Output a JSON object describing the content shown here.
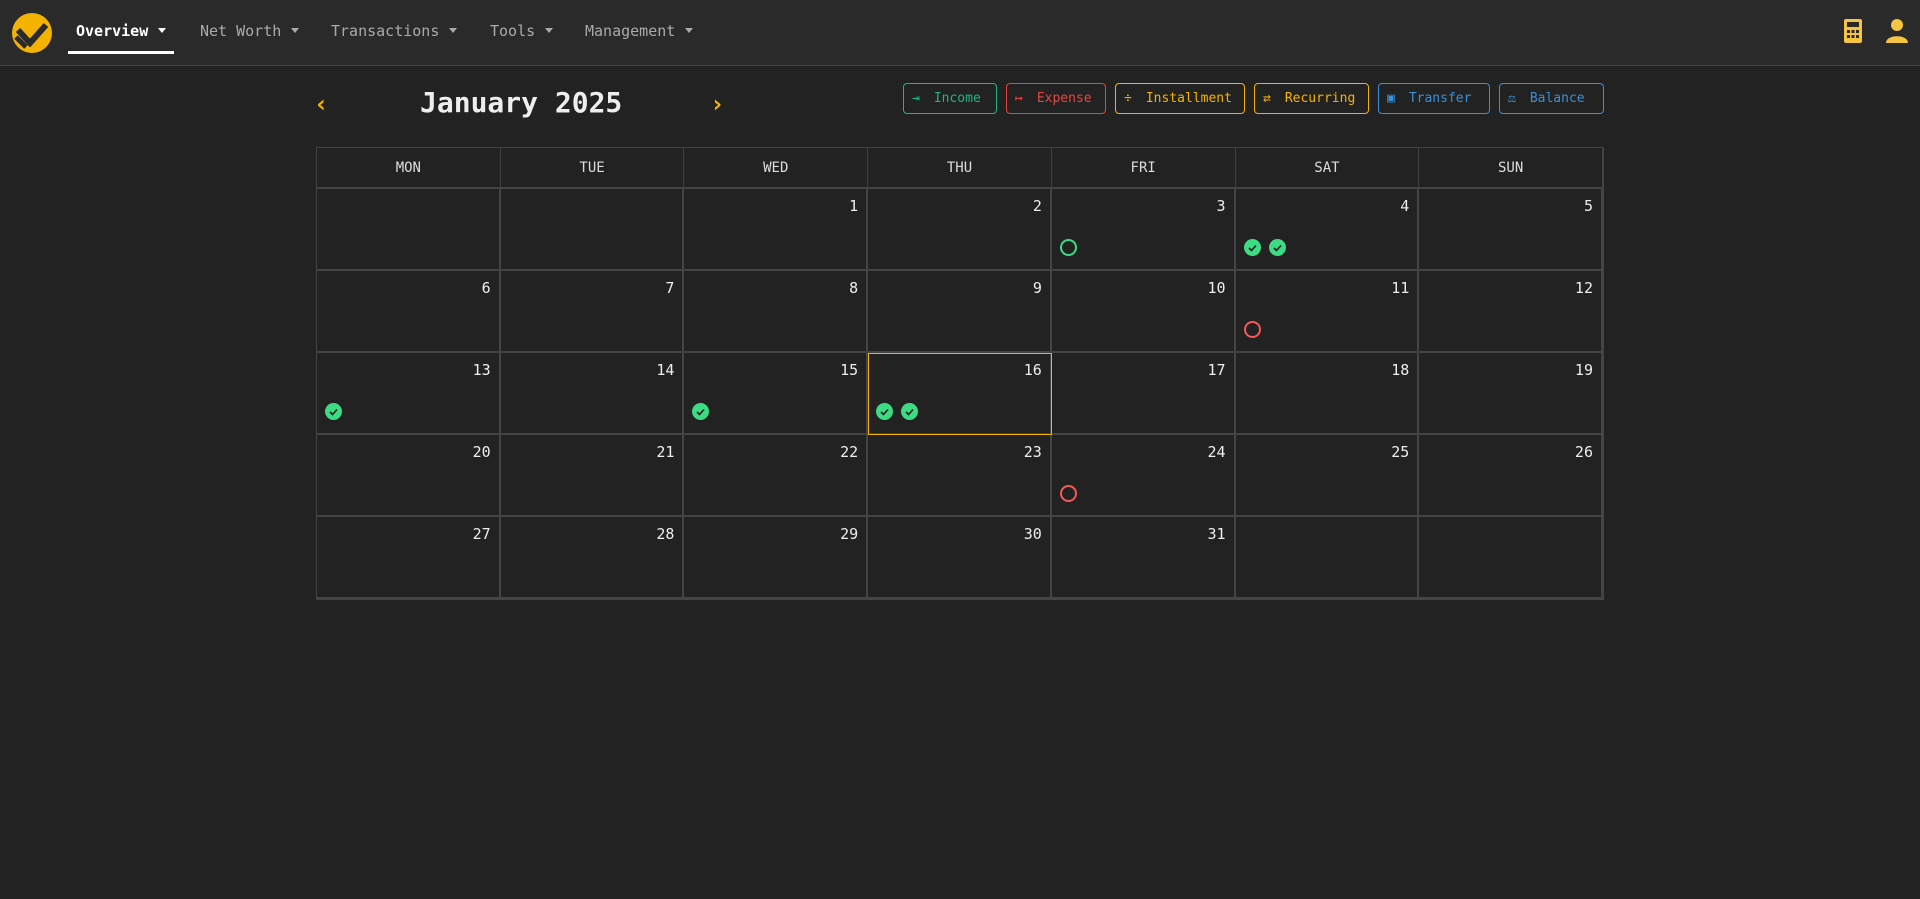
{
  "nav": {
    "items": [
      {
        "label": "Overview",
        "active": true
      },
      {
        "label": "Net Worth"
      },
      {
        "label": "Transactions"
      },
      {
        "label": "Tools"
      },
      {
        "label": "Management"
      }
    ],
    "right_icons": [
      "calculator-icon",
      "user-icon"
    ]
  },
  "calendar": {
    "title": "January 2025",
    "weekdays": [
      "MON",
      "TUE",
      "WED",
      "THU",
      "FRI",
      "SAT",
      "SUN"
    ],
    "today": 16,
    "weeks": [
      [
        null,
        null,
        1,
        2,
        3,
        4,
        5
      ],
      [
        6,
        7,
        8,
        9,
        10,
        11,
        12
      ],
      [
        13,
        14,
        15,
        16,
        17,
        18,
        19
      ],
      [
        20,
        21,
        22,
        23,
        24,
        25,
        26
      ],
      [
        27,
        28,
        29,
        30,
        31,
        null,
        null
      ]
    ],
    "events": {
      "3": [
        "pending-income"
      ],
      "4": [
        "done",
        "done"
      ],
      "11": [
        "pending-expense"
      ],
      "13": [
        "done"
      ],
      "15": [
        "done"
      ],
      "16": [
        "done",
        "done"
      ],
      "24": [
        "pending-expense"
      ]
    }
  },
  "actions": [
    {
      "label": "Income",
      "icon": "sign-in-icon",
      "color": "#1fb67e"
    },
    {
      "label": "Expense",
      "icon": "sign-out-icon",
      "color": "#e8463c"
    },
    {
      "label": "Installment",
      "icon": "divide-icon",
      "color": "#f5b301"
    },
    {
      "label": "Recurring",
      "icon": "repeat-icon",
      "color": "#f5b301"
    },
    {
      "label": "Transfer",
      "icon": "money-transfer-icon",
      "color": "#3a8fd8"
    },
    {
      "label": "Balance",
      "icon": "scale-icon",
      "color": "#3a8fd8"
    }
  ],
  "colors": {
    "accent": "#f5b301",
    "done": "#3ddc84",
    "expense": "#f05a5a"
  }
}
